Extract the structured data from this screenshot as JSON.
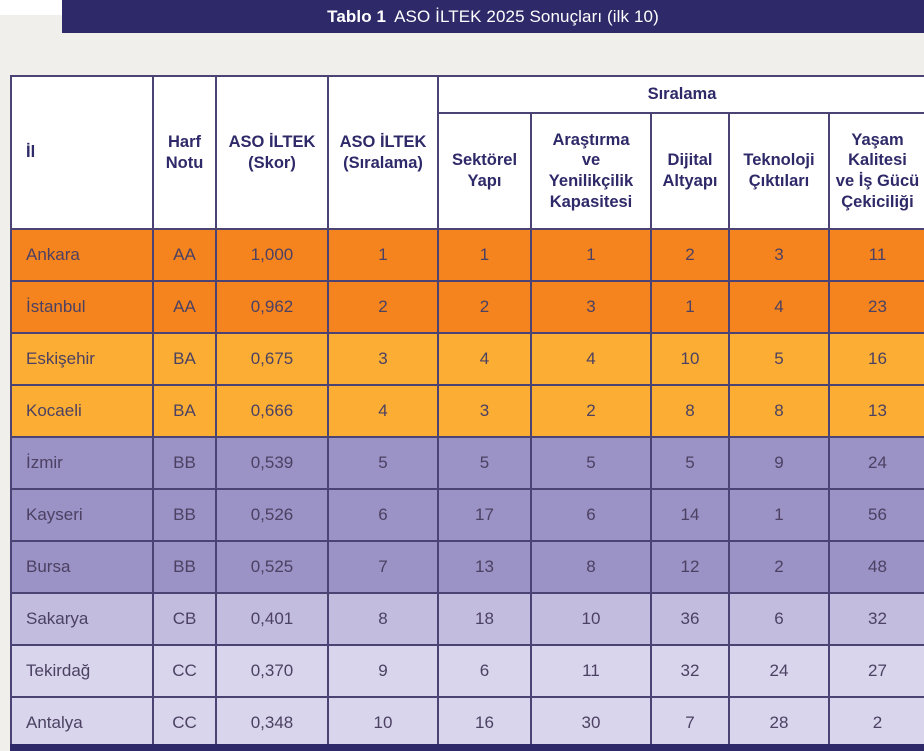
{
  "title_bar": {
    "label_bold": "Tablo 1",
    "label_rest": "ASO İLTEK 2025 Sonuçları (ilk 10)",
    "background": "#2E2968"
  },
  "colors": {
    "page_background": "#F0EFEC",
    "border": "#4A4373",
    "header_text": "#2E2968",
    "data_text": "#4C4162",
    "tier_aa": "#F5841F",
    "tier_ba": "#FBAE33",
    "tier_bb": "#9B92C6",
    "tier_cb": "#C2BCDF",
    "tier_cc": "#D8D5EC"
  },
  "table": {
    "group_header": "Sıralama",
    "headers": {
      "il": "İl",
      "harf": "Harf\nNotu",
      "skor": "ASO İLTEK\n(Skor)",
      "siralama": "ASO İLTEK\n(Sıralama)",
      "sektorel": "Sektörel\nYapı",
      "arastirma": "Araştırma\nve\nYenilikçilik\nKapasitesi",
      "dijital": "Dijital\nAltyapı",
      "teknoloji": "Teknoloji\nÇıktıları",
      "yasam": "Yaşam\nKalitesi\nve İş Gücü\nÇekiciliği"
    },
    "rows": [
      {
        "il": "Ankara",
        "harf": "AA",
        "skor": "1,000",
        "siralama": "1",
        "sektorel": "1",
        "arastirma": "1",
        "dijital": "2",
        "teknoloji": "3",
        "yasam": "11",
        "tier": "aa"
      },
      {
        "il": "İstanbul",
        "harf": "AA",
        "skor": "0,962",
        "siralama": "2",
        "sektorel": "2",
        "arastirma": "3",
        "dijital": "1",
        "teknoloji": "4",
        "yasam": "23",
        "tier": "aa"
      },
      {
        "il": "Eskişehir",
        "harf": "BA",
        "skor": "0,675",
        "siralama": "3",
        "sektorel": "4",
        "arastirma": "4",
        "dijital": "10",
        "teknoloji": "5",
        "yasam": "16",
        "tier": "ba"
      },
      {
        "il": "Kocaeli",
        "harf": "BA",
        "skor": "0,666",
        "siralama": "4",
        "sektorel": "3",
        "arastirma": "2",
        "dijital": "8",
        "teknoloji": "8",
        "yasam": "13",
        "tier": "ba"
      },
      {
        "il": "İzmir",
        "harf": "BB",
        "skor": "0,539",
        "siralama": "5",
        "sektorel": "5",
        "arastirma": "5",
        "dijital": "5",
        "teknoloji": "9",
        "yasam": "24",
        "tier": "bb"
      },
      {
        "il": "Kayseri",
        "harf": "BB",
        "skor": "0,526",
        "siralama": "6",
        "sektorel": "17",
        "arastirma": "6",
        "dijital": "14",
        "teknoloji": "1",
        "yasam": "56",
        "tier": "bb"
      },
      {
        "il": "Bursa",
        "harf": "BB",
        "skor": "0,525",
        "siralama": "7",
        "sektorel": "13",
        "arastirma": "8",
        "dijital": "12",
        "teknoloji": "2",
        "yasam": "48",
        "tier": "bb"
      },
      {
        "il": "Sakarya",
        "harf": "CB",
        "skor": "0,401",
        "siralama": "8",
        "sektorel": "18",
        "arastirma": "10",
        "dijital": "36",
        "teknoloji": "6",
        "yasam": "32",
        "tier": "cb"
      },
      {
        "il": "Tekirdağ",
        "harf": "CC",
        "skor": "0,370",
        "siralama": "9",
        "sektorel": "6",
        "arastirma": "11",
        "dijital": "32",
        "teknoloji": "24",
        "yasam": "27",
        "tier": "cc"
      },
      {
        "il": "Antalya",
        "harf": "CC",
        "skor": "0,348",
        "siralama": "10",
        "sektorel": "16",
        "arastirma": "30",
        "dijital": "7",
        "teknoloji": "28",
        "yasam": "2",
        "tier": "cc"
      }
    ]
  }
}
